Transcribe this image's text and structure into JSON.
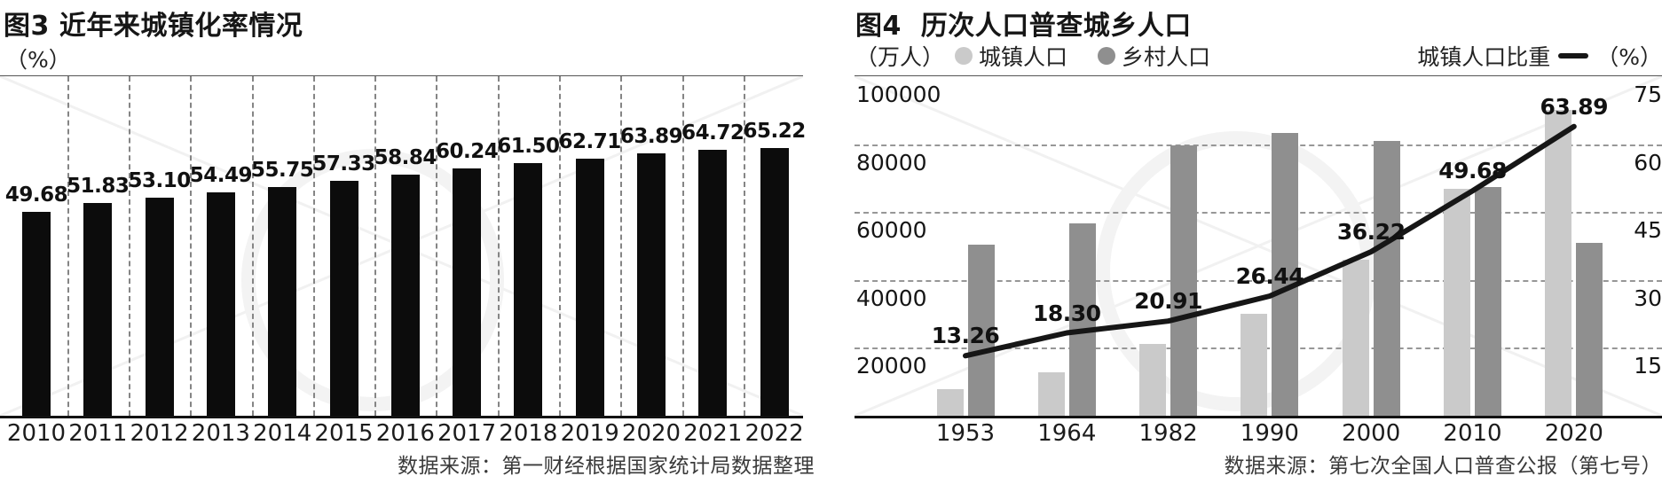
{
  "chart_data": [
    {
      "id": "figure-3-urbanization-rate",
      "type": "bar",
      "title": "图3 近年来城镇化率情况",
      "unit": "（%）",
      "categories": [
        "2010",
        "2011",
        "2012",
        "2013",
        "2014",
        "2015",
        "2016",
        "2017",
        "2018",
        "2019",
        "2020",
        "2021",
        "2022"
      ],
      "values": [
        49.68,
        51.83,
        53.1,
        54.49,
        55.75,
        57.33,
        58.84,
        60.24,
        61.5,
        62.71,
        63.89,
        64.72,
        65.22
      ],
      "bar_color": "#0c0c0c",
      "ylim": [
        0,
        82.7
      ],
      "grid": "vertical-dashed",
      "value_labels": "shown above bars",
      "source": "数据来源：第一财经根据国家统计局数据整理"
    },
    {
      "id": "figure-4-census-urban-rural-population",
      "type": "bar+line",
      "title": "图4  历次人口普查城乡人口",
      "unit_left": "（万人）",
      "unit_right": "（%）",
      "categories": [
        "1953",
        "1964",
        "1982",
        "1990",
        "2000",
        "2010",
        "2020"
      ],
      "series": [
        {
          "name": "城镇人口",
          "type": "bar",
          "axis": "left",
          "color": "#cacaca",
          "values": [
            7726,
            12710,
            21082,
            29971,
            45844,
            66978,
            90199
          ],
          "values_estimated": true
        },
        {
          "name": "乡村人口",
          "type": "bar",
          "axis": "left",
          "color": "#8f8f8f",
          "values": [
            50534,
            56748,
            79736,
            83397,
            80837,
            67415,
            50979
          ],
          "values_estimated": true
        },
        {
          "name": "城镇人口比重",
          "type": "line",
          "axis": "right",
          "color": "#161616",
          "values": [
            13.26,
            18.3,
            20.91,
            26.44,
            36.22,
            49.68,
            63.89
          ],
          "value_labels": "shown"
        }
      ],
      "y_left": {
        "lim": [
          0,
          100000
        ],
        "ticks": [
          100000,
          80000,
          60000,
          40000,
          20000
        ]
      },
      "y_right": {
        "lim": [
          0,
          75
        ],
        "ticks": [
          75,
          60,
          45,
          30,
          15
        ]
      },
      "grid": "horizontal-dashed",
      "legend_position": "top",
      "source": "数据来源：第七次全国人口普查公报（第七号）"
    }
  ]
}
